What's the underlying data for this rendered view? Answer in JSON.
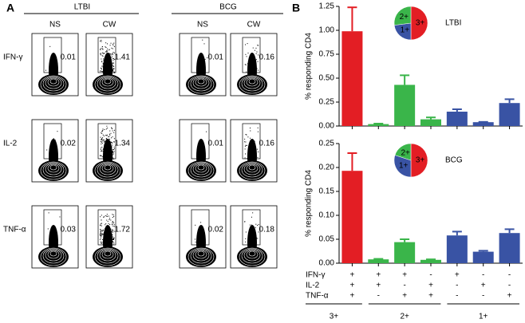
{
  "panel_a": {
    "label": "A",
    "groups": [
      {
        "title": "LTBI",
        "columns": [
          "NS",
          "CW"
        ]
      },
      {
        "title": "BCG",
        "columns": [
          "NS",
          "CW"
        ]
      }
    ],
    "rows": [
      {
        "marker": "IFN-γ",
        "values": [
          0.01,
          1.41,
          0.01,
          0.16
        ]
      },
      {
        "marker": "IL-2",
        "values": [
          0.02,
          1.34,
          0.01,
          0.16
        ]
      },
      {
        "marker": "TNF-α",
        "values": [
          0.03,
          1.72,
          0.02,
          0.18
        ]
      }
    ]
  },
  "panel_b": {
    "label": "B"
  },
  "combinations": {
    "rows": [
      {
        "name": "IFN-γ",
        "signs": [
          "+",
          "+",
          "+",
          "-",
          "+",
          "-",
          "-"
        ]
      },
      {
        "name": "IL-2",
        "signs": [
          "+",
          "+",
          "-",
          "+",
          "-",
          "+",
          "-"
        ]
      },
      {
        "name": "TNF-α",
        "signs": [
          "+",
          "-",
          "+",
          "+",
          "-",
          "-",
          "+"
        ]
      }
    ],
    "groups": [
      {
        "label": "3+",
        "size": 1
      },
      {
        "label": "2+",
        "size": 3
      },
      {
        "label": "1+",
        "size": 3
      }
    ]
  },
  "chart_data": [
    {
      "type": "bar",
      "ylabel": "% responding CD4",
      "values": [
        0.99,
        0.02,
        0.43,
        0.07,
        0.15,
        0.04,
        0.24
      ],
      "errors": [
        0.25,
        0.005,
        0.1,
        0.02,
        0.025,
        0.003,
        0.04
      ],
      "colors": [
        "#e31e24",
        "#3ab54a",
        "#3ab54a",
        "#3ab54a",
        "#3953a4",
        "#3953a4",
        "#3953a4"
      ],
      "ylim": [
        0,
        1.25
      ],
      "yticks": [
        {
          "value": 0,
          "label": "0.00"
        },
        {
          "value": 0.25,
          "label": "0.25"
        },
        {
          "value": 0.5,
          "label": "0.50"
        },
        {
          "value": 0.75,
          "label": "0.75"
        },
        {
          "value": 1,
          "label": "1.00"
        },
        {
          "value": 1.25,
          "label": "1.25"
        }
      ],
      "pie": {
        "title": "LTBI",
        "labels": [
          "3+",
          "1+",
          "2+"
        ],
        "values": [
          50,
          23,
          27
        ],
        "colors": [
          "#e31e24",
          "#3953a4",
          "#3ab54a"
        ]
      }
    },
    {
      "type": "bar",
      "ylabel": "% responding CD4",
      "values": [
        0.193,
        0.008,
        0.044,
        0.007,
        0.058,
        0.024,
        0.063
      ],
      "errors": [
        0.037,
        0.001,
        0.006,
        0.001,
        0.008,
        0.002,
        0.008
      ],
      "colors": [
        "#e31e24",
        "#3ab54a",
        "#3ab54a",
        "#3ab54a",
        "#3953a4",
        "#3953a4",
        "#3953a4"
      ],
      "ylim": [
        0,
        0.25
      ],
      "yticks": [
        {
          "value": 0,
          "label": "0.00"
        },
        {
          "value": 0.05,
          "label": "0.05"
        },
        {
          "value": 0.1,
          "label": "0.10"
        },
        {
          "value": 0.15,
          "label": "0.15"
        },
        {
          "value": 0.2,
          "label": "0.20"
        },
        {
          "value": 0.25,
          "label": "0.25"
        }
      ],
      "pie": {
        "title": "BCG",
        "labels": [
          "3+",
          "1+",
          "2+"
        ],
        "values": [
          50,
          30,
          20
        ],
        "colors": [
          "#e31e24",
          "#3953a4",
          "#3ab54a"
        ]
      }
    }
  ]
}
